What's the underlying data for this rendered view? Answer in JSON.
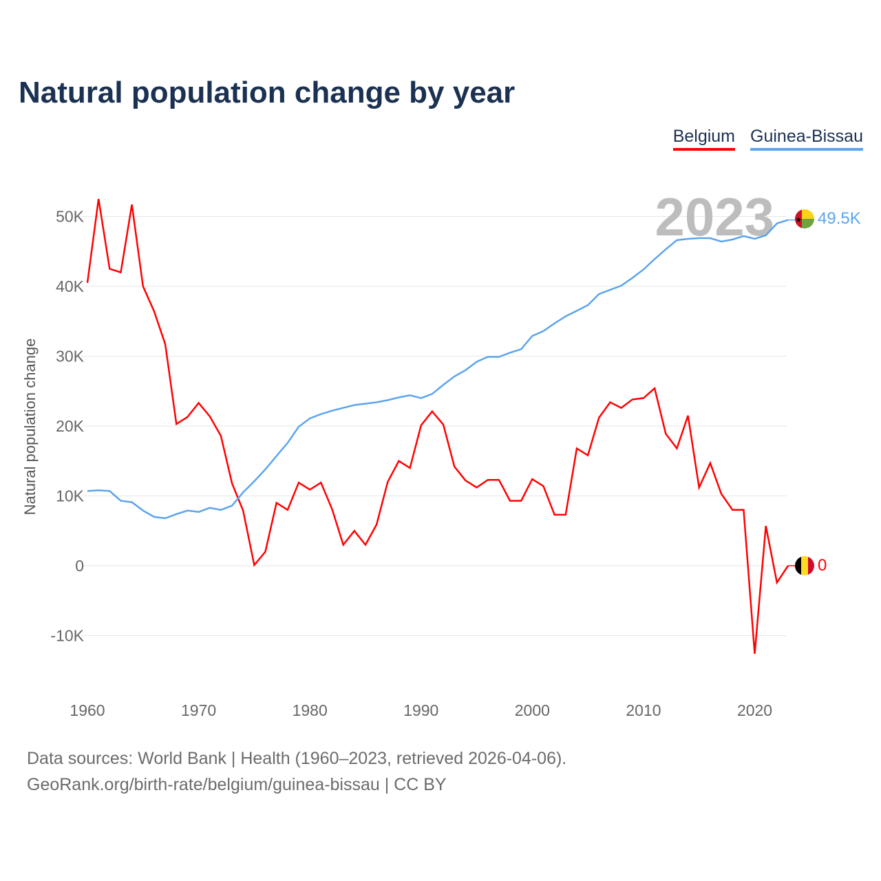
{
  "title": "Natural population change by year",
  "legend": [
    {
      "label": "Belgium",
      "color": "#ff0000"
    },
    {
      "label": "Guinea-Bissau",
      "color": "#5ba4ee"
    }
  ],
  "year_watermark": "2023",
  "end_labels": {
    "belgium": "0",
    "guinea_bissau": "49.5K"
  },
  "footer": {
    "line1": "Data sources: World Bank | Health (1960–2023, retrieved 2026-04-06).",
    "line2": "GeoRank.org/birth-rate/belgium/guinea-bissau | CC BY"
  },
  "chart_data": {
    "type": "line",
    "title": "Natural population change by year",
    "xlabel": "",
    "ylabel": "Natural population change",
    "xlim": [
      1960,
      2023
    ],
    "ylim": [
      -15000,
      55000
    ],
    "x_ticks": [
      1960,
      1970,
      1980,
      1990,
      2000,
      2010,
      2020
    ],
    "x_tick_labels": [
      "1960",
      "1970",
      "1980",
      "1990",
      "2000",
      "2010",
      "2020"
    ],
    "y_ticks": [
      -10000,
      0,
      10000,
      20000,
      30000,
      40000,
      50000
    ],
    "y_tick_labels": [
      "-10K",
      "0",
      "10K",
      "20K",
      "30K",
      "40K",
      "50K"
    ],
    "grid": true,
    "legend_position": "top-right",
    "x_start": 1960,
    "series": [
      {
        "name": "Belgium",
        "color": "#ff0000",
        "values": [
          40500,
          52500,
          42500,
          42000,
          51700,
          40000,
          36400,
          31700,
          20300,
          21300,
          23300,
          21400,
          18600,
          11800,
          7900,
          100,
          2000,
          9000,
          8000,
          11900,
          10900,
          11900,
          8100,
          3000,
          5000,
          3000,
          5900,
          12000,
          15000,
          14000,
          20100,
          22100,
          20200,
          14200,
          12200,
          11200,
          12300,
          12300,
          9300,
          9300,
          12400,
          11400,
          7300,
          7300,
          16800,
          15800,
          21200,
          23400,
          22600,
          23800,
          24000,
          25400,
          18900,
          16800,
          21500,
          11200,
          14700,
          10300,
          8000,
          8000,
          -12600,
          5700,
          -2400,
          0
        ]
      },
      {
        "name": "Guinea-Bissau",
        "color": "#5ba4ee",
        "values": [
          10700,
          10800,
          10700,
          9300,
          9100,
          7900,
          7000,
          6800,
          7400,
          7900,
          7700,
          8300,
          8000,
          8600,
          10500,
          12100,
          13800,
          15700,
          17600,
          19900,
          21100,
          21700,
          22200,
          22600,
          23000,
          23200,
          23400,
          23700,
          24100,
          24400,
          24000,
          24600,
          25900,
          27100,
          28000,
          29200,
          29900,
          29900,
          30500,
          31000,
          32900,
          33600,
          34700,
          35700,
          36500,
          37300,
          38900,
          39500,
          40100,
          41200,
          42400,
          43900,
          45300,
          46600,
          46800,
          46900,
          46900,
          46400,
          46700,
          47200,
          46800,
          47300,
          49000,
          49500
        ]
      }
    ]
  }
}
